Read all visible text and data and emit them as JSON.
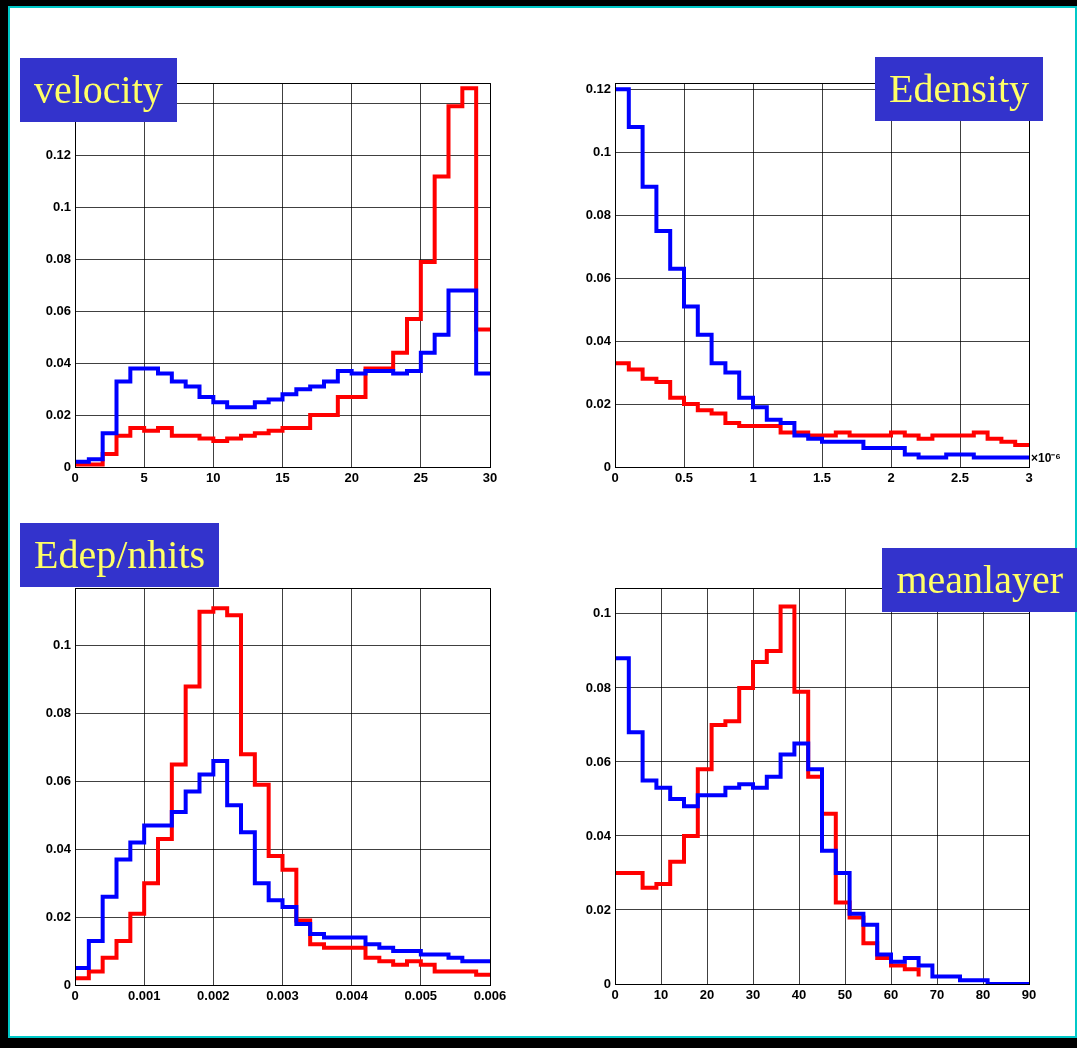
{
  "chart_data": [
    {
      "type": "step",
      "title": "velocity",
      "x": [
        0,
        1,
        2,
        3,
        4,
        5,
        6,
        7,
        8,
        9,
        10,
        11,
        12,
        13,
        14,
        15,
        16,
        17,
        18,
        19,
        20,
        21,
        22,
        23,
        24,
        25,
        26,
        27,
        28,
        29,
        30
      ],
      "series": [
        {
          "color": "#ff0000",
          "values": [
            0.001,
            0.001,
            0.005,
            0.012,
            0.015,
            0.014,
            0.015,
            0.012,
            0.012,
            0.011,
            0.01,
            0.011,
            0.012,
            0.013,
            0.014,
            0.015,
            0.015,
            0.02,
            0.02,
            0.027,
            0.027,
            0.038,
            0.038,
            0.044,
            0.057,
            0.079,
            0.112,
            0.139,
            0.146,
            0.053,
            0.053
          ]
        },
        {
          "color": "#0000ff",
          "values": [
            0.002,
            0.003,
            0.013,
            0.033,
            0.038,
            0.038,
            0.036,
            0.033,
            0.031,
            0.027,
            0.025,
            0.023,
            0.023,
            0.025,
            0.026,
            0.028,
            0.03,
            0.031,
            0.033,
            0.037,
            0.036,
            0.037,
            0.037,
            0.036,
            0.037,
            0.044,
            0.051,
            0.068,
            0.068,
            0.036,
            0.036
          ]
        }
      ],
      "xlim": [
        0,
        30
      ],
      "ylim": [
        0,
        0.148
      ],
      "xticks": [
        0,
        5,
        10,
        15,
        20,
        25,
        30
      ],
      "yticks": [
        0,
        0.02,
        0.04,
        0.06,
        0.08,
        0.1,
        0.12,
        {
          "value": 0.14,
          "label": null
        }
      ],
      "grid": true
    },
    {
      "type": "step",
      "title": "Edensity",
      "xlabel": "×10⁻⁶",
      "x": [
        0,
        0.1,
        0.2,
        0.3,
        0.4,
        0.5,
        0.6,
        0.7,
        0.8,
        0.9,
        1,
        1.1,
        1.2,
        1.3,
        1.4,
        1.5,
        1.6,
        1.7,
        1.8,
        1.9,
        2,
        2.1,
        2.2,
        2.3,
        2.4,
        2.5,
        2.6,
        2.7,
        2.8,
        2.9,
        3
      ],
      "series": [
        {
          "color": "#ff0000",
          "values": [
            0.033,
            0.031,
            0.028,
            0.027,
            0.022,
            0.02,
            0.018,
            0.017,
            0.014,
            0.013,
            0.013,
            0.013,
            0.011,
            0.011,
            0.01,
            0.01,
            0.011,
            0.01,
            0.01,
            0.01,
            0.011,
            0.01,
            0.009,
            0.01,
            0.01,
            0.01,
            0.011,
            0.009,
            0.008,
            0.007,
            0.007
          ]
        },
        {
          "color": "#0000ff",
          "values": [
            0.12,
            0.108,
            0.089,
            0.075,
            0.063,
            0.051,
            0.042,
            0.033,
            0.03,
            0.022,
            0.019,
            0.015,
            0.014,
            0.01,
            0.009,
            0.008,
            0.008,
            0.008,
            0.006,
            0.006,
            0.006,
            0.004,
            0.003,
            0.003,
            0.004,
            0.004,
            0.003,
            0.003,
            0.003,
            0.003,
            0.003
          ]
        }
      ],
      "xlim": [
        0,
        3
      ],
      "ylim": [
        0,
        0.122
      ],
      "xticks": [
        0,
        0.5,
        1,
        1.5,
        2,
        2.5,
        3
      ],
      "yticks": [
        0,
        0.02,
        0.04,
        0.06,
        0.08,
        0.1,
        0.12
      ],
      "grid": true
    },
    {
      "type": "step",
      "title": "Edep/nhits",
      "x": [
        0,
        0.0002,
        0.0004,
        0.0006,
        0.0008,
        0.001,
        0.0012,
        0.0014,
        0.0016,
        0.0018,
        0.002,
        0.0022,
        0.0024,
        0.0026,
        0.0028,
        0.003,
        0.0032,
        0.0034,
        0.0036,
        0.0038,
        0.004,
        0.0042,
        0.0044,
        0.0046,
        0.0048,
        0.005,
        0.0052,
        0.0054,
        0.0056,
        0.0058,
        0.006
      ],
      "series": [
        {
          "color": "#ff0000",
          "values": [
            0.002,
            0.004,
            0.008,
            0.013,
            0.021,
            0.03,
            0.043,
            0.065,
            0.088,
            0.11,
            0.111,
            0.109,
            0.068,
            0.059,
            0.038,
            0.034,
            0.019,
            0.012,
            0.011,
            0.011,
            0.011,
            0.008,
            0.007,
            0.006,
            0.007,
            0.006,
            0.004,
            0.004,
            0.004,
            0.003,
            0.003
          ]
        },
        {
          "color": "#0000ff",
          "values": [
            0.005,
            0.013,
            0.026,
            0.037,
            0.042,
            0.047,
            0.047,
            0.051,
            0.057,
            0.062,
            0.066,
            0.053,
            0.045,
            0.03,
            0.025,
            0.023,
            0.018,
            0.015,
            0.014,
            0.014,
            0.014,
            0.012,
            0.011,
            0.01,
            0.01,
            0.009,
            0.009,
            0.008,
            0.007,
            0.007,
            0.007
          ]
        }
      ],
      "xlim": [
        0,
        0.006
      ],
      "ylim": [
        0,
        0.117
      ],
      "xticks": [
        0,
        0.001,
        0.002,
        0.003,
        0.004,
        0.005,
        0.006
      ],
      "yticks": [
        0,
        0.02,
        0.04,
        0.06,
        0.08,
        0.1
      ],
      "grid": true
    },
    {
      "type": "step",
      "title": "meanlayer",
      "x": [
        0,
        3,
        6,
        9,
        12,
        15,
        18,
        21,
        24,
        27,
        30,
        33,
        36,
        39,
        42,
        45,
        48,
        51,
        54,
        57,
        60,
        63,
        66,
        69,
        72,
        75,
        78,
        81,
        84,
        87,
        90
      ],
      "series": [
        {
          "color": "#ff0000",
          "values": [
            0.03,
            0.03,
            0.026,
            0.027,
            0.033,
            0.04,
            0.058,
            0.07,
            0.071,
            0.08,
            0.087,
            0.09,
            0.102,
            0.079,
            0.056,
            0.046,
            0.022,
            0.018,
            0.011,
            0.007,
            0.005,
            0.004,
            0.002,
            null,
            null,
            null,
            null,
            null,
            null,
            null,
            null
          ]
        },
        {
          "color": "#0000ff",
          "values": [
            0.088,
            0.068,
            0.055,
            0.053,
            0.05,
            0.048,
            0.051,
            0.051,
            0.053,
            0.054,
            0.053,
            0.056,
            0.062,
            0.065,
            0.058,
            0.036,
            0.03,
            0.019,
            0.016,
            0.008,
            0.006,
            0.007,
            0.005,
            0.002,
            0.002,
            0.001,
            0.001,
            0,
            0,
            0,
            0
          ]
        }
      ],
      "xlim": [
        0,
        90
      ],
      "ylim": [
        0,
        0.107
      ],
      "xticks": [
        0,
        10,
        20,
        30,
        40,
        50,
        60,
        70,
        80,
        90
      ],
      "yticks": [
        0,
        0.02,
        0.04,
        0.06,
        0.08,
        0.1
      ],
      "grid": true
    }
  ]
}
